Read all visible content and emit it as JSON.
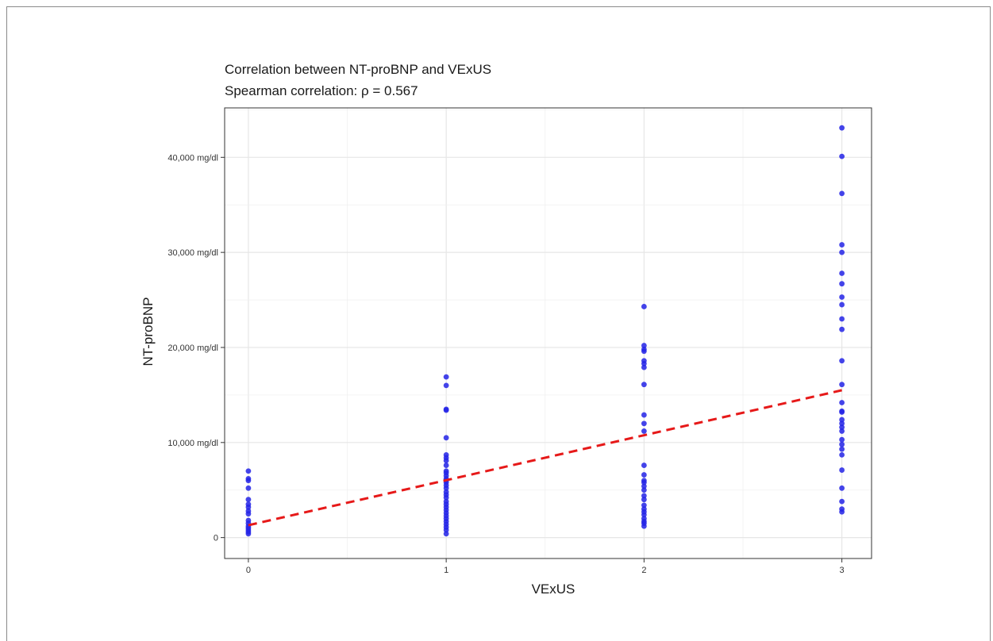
{
  "chart_data": {
    "type": "scatter",
    "title": "Correlation between NT-proBNP and VExUS",
    "subtitle": "Spearman correlation: ρ  = 0.567",
    "xlabel": "VExUS",
    "ylabel": "NT-proBNP",
    "x_ticks": [
      "0",
      "1",
      "2",
      "3"
    ],
    "y_ticks": [
      "0",
      "10,000 mg/dl",
      "20,000 mg/dl",
      "30,000 mg/dl",
      "40,000 mg/dl"
    ],
    "xlim": [
      -0.12,
      3.15
    ],
    "ylim": [
      -2200,
      45200
    ],
    "grid": true,
    "point_color": "#2323e6",
    "trend_color": "#e61919",
    "trend_line": {
      "style": "dashed",
      "x": [
        0,
        3
      ],
      "y": [
        1300,
        15500
      ]
    },
    "points": [
      {
        "x": 0,
        "values": [
          7000,
          6200,
          6000,
          5200,
          4000,
          3500,
          3200,
          2800,
          2500,
          1800,
          1500,
          1200,
          1000,
          800,
          600,
          400
        ]
      },
      {
        "x": 1,
        "values": [
          16900,
          16000,
          13500,
          13400,
          10500,
          8700,
          8400,
          8100,
          7600,
          7000,
          6800,
          6500,
          6200,
          6000,
          5800,
          5500,
          5200,
          4800,
          4500,
          4200,
          3800,
          3500,
          3200,
          2900,
          2600,
          2300,
          2000,
          1700,
          1400,
          1100,
          800,
          400
        ]
      },
      {
        "x": 2,
        "values": [
          24300,
          20200,
          19800,
          19600,
          18600,
          18300,
          17900,
          16100,
          12900,
          12000,
          11200,
          7600,
          6600,
          6000,
          5800,
          5400,
          5000,
          4400,
          4000,
          3400,
          3000,
          2700,
          2400,
          2000,
          1700,
          1500,
          1200
        ]
      },
      {
        "x": 3,
        "values": [
          43100,
          40100,
          36200,
          30800,
          30000,
          27800,
          26700,
          25300,
          24500,
          23000,
          21900,
          18600,
          16100,
          14200,
          13300,
          13200,
          12400,
          12000,
          11600,
          11200,
          10300,
          9800,
          9300,
          8700,
          7100,
          5200,
          3800,
          3000,
          2700
        ]
      }
    ]
  }
}
